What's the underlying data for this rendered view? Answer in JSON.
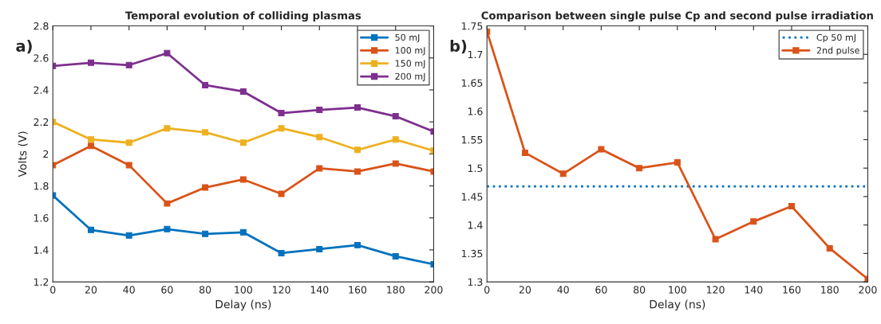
{
  "chart_data": [
    {
      "type": "line",
      "title": "Temporal evolution of colliding plasmas",
      "xlabel": "Delay (ns)",
      "ylabel": "Volts (V)",
      "annotations": [
        "a)"
      ],
      "x": [
        0,
        20,
        40,
        60,
        80,
        100,
        120,
        140,
        160,
        180,
        200
      ],
      "series": [
        {
          "name": "50 mJ",
          "color": "#0072bd",
          "values": [
            1.74,
            1.525,
            1.49,
            1.53,
            1.5,
            1.51,
            1.38,
            1.405,
            1.43,
            1.36,
            1.31
          ]
        },
        {
          "name": "100 mJ",
          "color": "#d95319",
          "values": [
            1.93,
            2.05,
            1.93,
            1.69,
            1.79,
            1.84,
            1.75,
            1.91,
            1.89,
            1.94,
            1.89
          ]
        },
        {
          "name": "150 mJ",
          "color": "#edb120",
          "values": [
            2.2,
            2.09,
            2.07,
            2.16,
            2.135,
            2.07,
            2.16,
            2.105,
            2.025,
            2.09,
            2.02
          ]
        },
        {
          "name": "200 mJ",
          "color": "#7e2f8e",
          "values": [
            2.55,
            2.57,
            2.555,
            2.63,
            2.43,
            2.39,
            2.255,
            2.275,
            2.29,
            2.235,
            2.14
          ]
        }
      ],
      "xlim": [
        0,
        200
      ],
      "xticks": [
        0,
        20,
        40,
        60,
        80,
        100,
        120,
        140,
        160,
        180,
        200
      ],
      "ylim": [
        1.2,
        2.8
      ],
      "yticks": [
        1.2,
        1.4,
        1.6,
        1.8,
        2,
        2.2,
        2.4,
        2.6,
        2.8
      ],
      "grid": false,
      "legend": "top right",
      "marker": "square",
      "line_style": "solid"
    },
    {
      "type": "line",
      "title": "Comparison between single pulse Cp and second pulse irradiation",
      "xlabel": "Delay (ns)",
      "annotations": [
        "b)"
      ],
      "x": [
        0,
        20,
        40,
        60,
        80,
        100,
        120,
        140,
        160,
        180,
        200
      ],
      "series": [
        {
          "name": "2nd pulse",
          "color": "#d95319",
          "values": [
            1.74,
            1.527,
            1.49,
            1.533,
            1.5,
            1.51,
            1.375,
            1.406,
            1.433,
            1.359,
            1.305
          ]
        }
      ],
      "ref_lines": [
        {
          "axis": "y",
          "value": 1.468,
          "label": "Cp 50 mJ",
          "color": "#0072bd",
          "line_style": "dotted"
        }
      ],
      "xlim": [
        0,
        200
      ],
      "xticks": [
        0,
        20,
        40,
        60,
        80,
        100,
        120,
        140,
        160,
        180,
        200
      ],
      "ylim": [
        1.3,
        1.75
      ],
      "yticks": [
        1.3,
        1.35,
        1.4,
        1.45,
        1.5,
        1.55,
        1.6,
        1.65,
        1.7,
        1.75
      ],
      "grid": false,
      "legend": "top right",
      "marker": "square",
      "line_style": "solid"
    }
  ]
}
